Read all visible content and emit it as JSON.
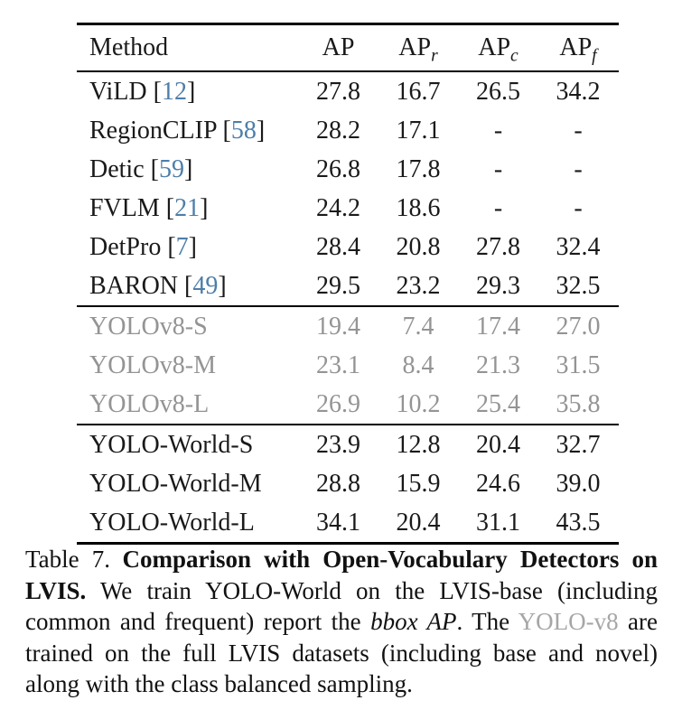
{
  "colors": {
    "text": "#1a1a1a",
    "citation_blue": "#4d7ea9",
    "disabled_gray": "#949494",
    "caption_gray": "#a6a6a6",
    "rule": "#000000",
    "background": "#ffffff"
  },
  "table": {
    "columns": [
      {
        "label": "Method",
        "sub": ""
      },
      {
        "label": "AP",
        "sub": ""
      },
      {
        "label": "AP",
        "sub": "r"
      },
      {
        "label": "AP",
        "sub": "c"
      },
      {
        "label": "AP",
        "sub": "f"
      }
    ],
    "groups": [
      {
        "style": "normal",
        "rows": [
          {
            "method": "ViLD",
            "cite": "12",
            "values": [
              "27.8",
              "16.7",
              "26.5",
              "34.2"
            ]
          },
          {
            "method": "RegionCLIP",
            "cite": "58",
            "values": [
              "28.2",
              "17.1",
              "-",
              "-"
            ]
          },
          {
            "method": "Detic",
            "cite": "59",
            "values": [
              "26.8",
              "17.8",
              "-",
              "-"
            ]
          },
          {
            "method": "FVLM",
            "cite": "21",
            "values": [
              "24.2",
              "18.6",
              "-",
              "-"
            ]
          },
          {
            "method": "DetPro",
            "cite": "7",
            "values": [
              "28.4",
              "20.8",
              "27.8",
              "32.4"
            ]
          },
          {
            "method": "BARON",
            "cite": "49",
            "values": [
              "29.5",
              "23.2",
              "29.3",
              "32.5"
            ]
          }
        ]
      },
      {
        "style": "gray",
        "rows": [
          {
            "method": "YOLOv8-S",
            "cite": "",
            "values": [
              "19.4",
              "7.4",
              "17.4",
              "27.0"
            ]
          },
          {
            "method": "YOLOv8-M",
            "cite": "",
            "values": [
              "23.1",
              "8.4",
              "21.3",
              "31.5"
            ]
          },
          {
            "method": "YOLOv8-L",
            "cite": "",
            "values": [
              "26.9",
              "10.2",
              "25.4",
              "35.8"
            ]
          }
        ]
      },
      {
        "style": "normal",
        "rows": [
          {
            "method": "YOLO-World-S",
            "cite": "",
            "values": [
              "23.9",
              "12.8",
              "20.4",
              "32.7"
            ]
          },
          {
            "method": "YOLO-World-M",
            "cite": "",
            "values": [
              "28.8",
              "15.9",
              "24.6",
              "39.0"
            ]
          },
          {
            "method": "YOLO-World-L",
            "cite": "",
            "values": [
              "34.1",
              "20.4",
              "31.1",
              "43.5"
            ]
          }
        ]
      }
    ]
  },
  "caption": {
    "segments": [
      {
        "text": "Table 7. ",
        "style": "normal"
      },
      {
        "text": "Comparison with Open-Vocabulary Detectors on LVIS.",
        "style": "bold"
      },
      {
        "text": " We train YOLO-World on the LVIS-base (including common and frequent) report the ",
        "style": "normal"
      },
      {
        "text": "bbox AP",
        "style": "italic"
      },
      {
        "text": ". The ",
        "style": "normal"
      },
      {
        "text": "YOLO-v8",
        "style": "gray"
      },
      {
        "text": " are trained on the full LVIS datasets (including base and novel) along with the class balanced sampling.",
        "style": "normal"
      }
    ]
  }
}
